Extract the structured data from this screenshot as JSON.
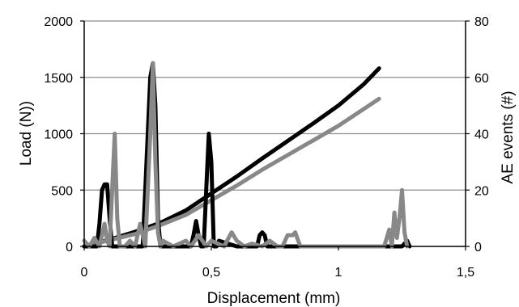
{
  "chart_data": {
    "type": "line",
    "xlabel": "Displacement (mm)",
    "ylabel": "Load (N))",
    "y2label": "AE events (#)",
    "xlim": [
      0,
      1.5
    ],
    "ylim": [
      0,
      2000
    ],
    "y2lim": [
      0,
      80
    ],
    "grid": "horizontal",
    "xticks": [
      0,
      0.5,
      1,
      1.5
    ],
    "xtick_labels": [
      "0",
      "0,5",
      "1",
      "1,5"
    ],
    "yticks": [
      0,
      500,
      1000,
      1500,
      2000
    ],
    "ytick_labels": [
      "0",
      "500",
      "1000",
      "1500",
      "2000"
    ],
    "y2ticks": [
      0,
      20,
      40,
      60,
      80
    ],
    "y2tick_labels": [
      "0",
      "20",
      "40",
      "60",
      "80"
    ],
    "series": [
      {
        "axis": "left",
        "color": "#000000",
        "x": [
          0,
          0.1,
          0.2,
          0.3,
          0.4,
          0.5,
          0.6,
          0.7,
          0.8,
          0.9,
          1.0,
          1.1,
          1.16
        ],
        "y": [
          0,
          60,
          130,
          210,
          320,
          470,
          620,
          780,
          935,
          1090,
          1250,
          1440,
          1580
        ]
      },
      {
        "axis": "left",
        "color": "#888888",
        "x": [
          0,
          0.1,
          0.2,
          0.3,
          0.4,
          0.5,
          0.6,
          0.7,
          0.8,
          0.9,
          1.0,
          1.1,
          1.16
        ],
        "y": [
          0,
          55,
          110,
          190,
          280,
          410,
          540,
          680,
          810,
          940,
          1070,
          1220,
          1310
        ]
      },
      {
        "axis": "right",
        "color": "#000000",
        "x": [
          0,
          0.05,
          0.06,
          0.07,
          0.08,
          0.09,
          0.1,
          0.11,
          0.2,
          0.23,
          0.24,
          0.25,
          0.26,
          0.27,
          0.28,
          0.29,
          0.3,
          0.38,
          0.42,
          0.43,
          0.44,
          0.45,
          0.46,
          0.47,
          0.48,
          0.49,
          0.5,
          0.51,
          0.52,
          0.53,
          0.6,
          0.68,
          0.69,
          0.7,
          0.71,
          0.72,
          1.0,
          1.2,
          1.25,
          1.27,
          1.28
        ],
        "y": [
          0,
          0,
          8,
          20,
          22,
          22,
          10,
          0,
          0,
          0,
          20,
          40,
          60,
          65,
          50,
          10,
          0,
          0,
          0,
          4,
          9,
          4,
          0,
          0,
          20,
          40,
          30,
          0,
          0,
          2,
          0,
          0,
          4,
          5,
          4,
          0,
          0,
          0,
          0,
          2,
          0
        ]
      },
      {
        "axis": "right",
        "color": "#888888",
        "x": [
          0,
          0.02,
          0.04,
          0.06,
          0.08,
          0.09,
          0.1,
          0.11,
          0.12,
          0.13,
          0.14,
          0.16,
          0.18,
          0.2,
          0.22,
          0.24,
          0.25,
          0.26,
          0.27,
          0.28,
          0.29,
          0.3,
          0.31,
          0.35,
          0.4,
          0.42,
          0.45,
          0.48,
          0.5,
          0.55,
          0.58,
          0.6,
          0.63,
          0.66,
          0.7,
          0.73,
          0.76,
          0.78,
          0.8,
          0.82,
          0.83,
          0.85,
          0.9,
          1.0,
          1.1,
          1.18,
          1.2,
          1.21,
          1.22,
          1.23,
          1.24,
          1.25,
          1.26,
          1.27
        ],
        "y": [
          2,
          0,
          3,
          0,
          8,
          2,
          0,
          20,
          40,
          10,
          0,
          0,
          2,
          0,
          8,
          0,
          20,
          40,
          65,
          30,
          5,
          0,
          2,
          0,
          2,
          0,
          4,
          0,
          2,
          0,
          5,
          2,
          0,
          1,
          0,
          2,
          0,
          0,
          4,
          4,
          5,
          0,
          0,
          0,
          0,
          0,
          6,
          0,
          12,
          3,
          10,
          20,
          5,
          0
        ]
      }
    ]
  }
}
